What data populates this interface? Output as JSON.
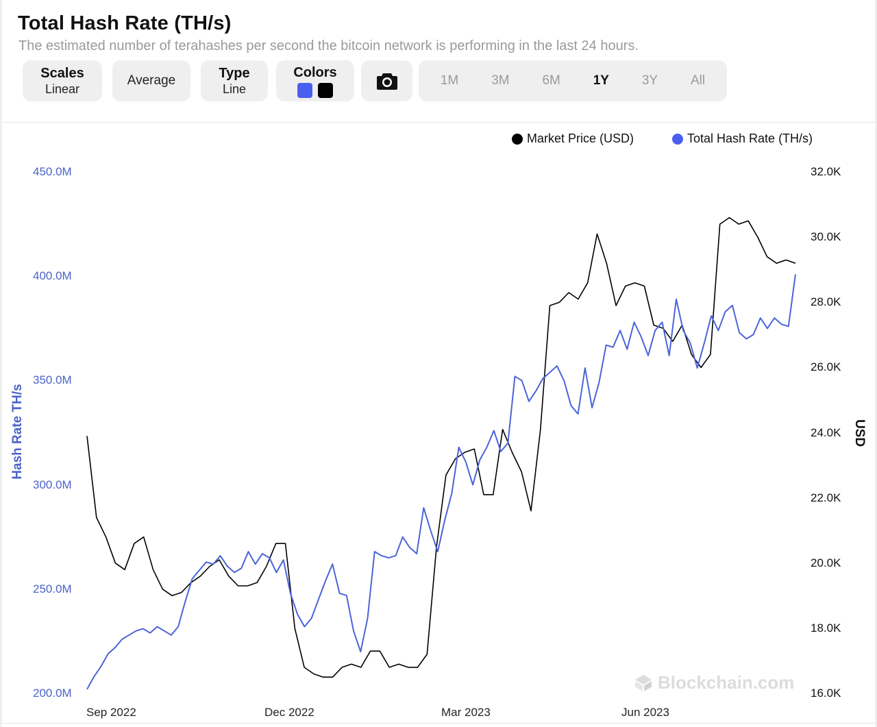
{
  "header": {
    "title": "Total Hash Rate (TH/s)",
    "subtitle": "The estimated number of terahashes per second the bitcoin network is performing in the last 24 hours."
  },
  "controls": {
    "scales": {
      "label": "Scales",
      "value": "Linear"
    },
    "average": {
      "label": "Average"
    },
    "type": {
      "label": "Type",
      "value": "Line"
    },
    "colors": {
      "label": "Colors",
      "swatch_1": "#4a5ff0",
      "swatch_2": "#000000"
    },
    "camera_icon": "camera-icon",
    "ranges": [
      "1M",
      "3M",
      "6M",
      "1Y",
      "3Y",
      "All"
    ],
    "active_range": "1Y"
  },
  "watermark": "Blockchain.com",
  "chart_data": {
    "type": "line",
    "x_ticks": [
      "Sep 2022",
      "Dec 2022",
      "Mar 2023",
      "Jun 2023"
    ],
    "y_left": {
      "label": "Hash Rate TH/s",
      "ticks": [
        "450.0M",
        "400.0M",
        "350.0M",
        "300.0M",
        "250.0M",
        "200.0M"
      ],
      "range": [
        200,
        450
      ]
    },
    "y_right": {
      "label": "USD",
      "ticks": [
        "32.0K",
        "30.0K",
        "28.0K",
        "26.0K",
        "24.0K",
        "22.0K",
        "20.0K",
        "18.0K",
        "16.0K"
      ],
      "range": [
        16,
        32
      ]
    },
    "legend_position": "top-right",
    "series": [
      {
        "name": "Market Price (USD)",
        "color": "#000000",
        "axis": "right",
        "unit_values": "thousands USD",
        "values": [
          23.9,
          21.4,
          20.8,
          20.0,
          19.8,
          20.6,
          20.8,
          19.8,
          19.2,
          19.0,
          19.1,
          19.4,
          19.6,
          19.9,
          20.1,
          19.6,
          19.3,
          19.3,
          19.4,
          19.9,
          20.6,
          20.6,
          18.0,
          16.8,
          16.6,
          16.5,
          16.5,
          16.8,
          16.9,
          16.8,
          17.3,
          17.3,
          16.8,
          16.9,
          16.8,
          16.8,
          17.2,
          20.5,
          22.7,
          23.2,
          23.4,
          23.5,
          22.1,
          22.1,
          24.1,
          23.4,
          22.8,
          21.6,
          24.1,
          27.9,
          28.0,
          28.3,
          28.1,
          28.6,
          30.1,
          29.2,
          27.9,
          28.5,
          28.6,
          28.5,
          27.3,
          27.2,
          26.8,
          27.3,
          26.4,
          26.0,
          26.4,
          30.4,
          30.6,
          30.4,
          30.5,
          30.0,
          29.4,
          29.2,
          29.3,
          29.2
        ]
      },
      {
        "name": "Total Hash Rate (TH/s)",
        "color": "#4a63d9",
        "axis": "left",
        "unit_values": "million TH/s",
        "values": [
          202,
          208,
          213,
          219,
          222,
          226,
          228,
          230,
          231,
          229,
          232,
          230,
          228,
          232,
          244,
          255,
          259,
          263,
          262,
          266,
          261,
          258,
          260,
          268,
          262,
          267,
          265,
          258,
          264,
          248,
          238,
          232,
          236,
          245,
          254,
          262,
          248,
          247,
          230,
          220,
          236,
          268,
          266,
          265,
          266,
          275,
          270,
          267,
          289,
          278,
          268,
          283,
          296,
          318,
          311,
          300,
          312,
          318,
          326,
          316,
          320,
          352,
          350,
          340,
          345,
          351,
          354,
          357,
          350,
          338,
          334,
          356,
          337,
          349,
          367,
          366,
          374,
          365,
          378,
          371,
          362,
          374,
          378,
          362,
          389,
          374,
          368,
          356,
          368,
          381,
          374,
          383,
          386,
          373,
          370,
          372,
          380,
          375,
          380,
          377,
          376,
          401
        ]
      }
    ]
  }
}
